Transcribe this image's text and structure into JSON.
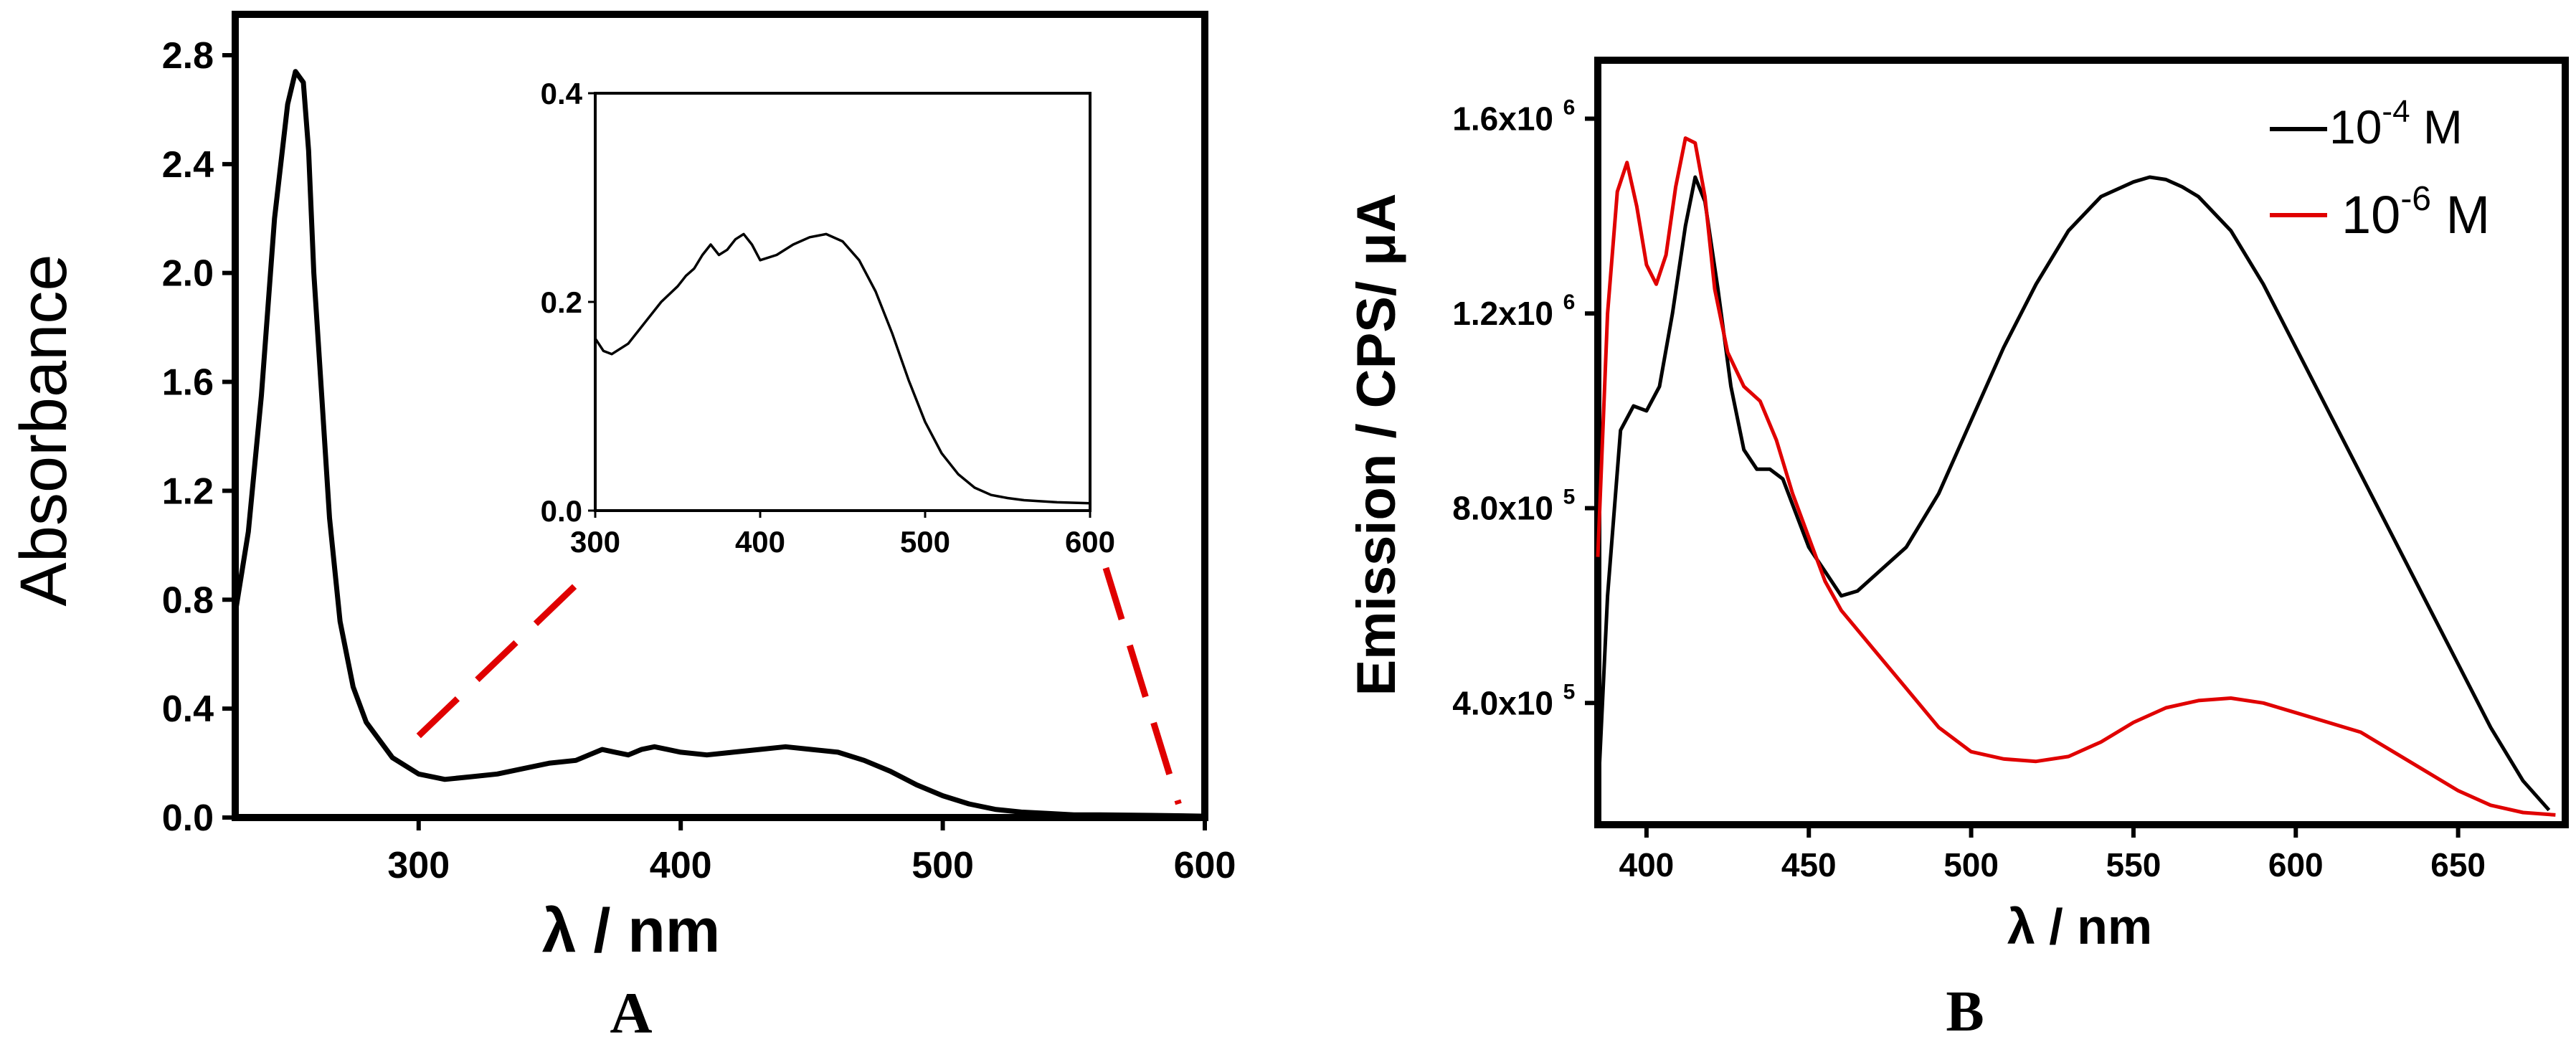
{
  "chart_data": [
    {
      "type": "line",
      "panel_label": "A",
      "xlabel": "λ / nm",
      "ylabel": "Absorbance",
      "xlim": [
        230,
        600
      ],
      "ylim": [
        0,
        2.95
      ],
      "xticks": [
        300,
        400,
        500,
        600
      ],
      "yticks": [
        0.0,
        0.4,
        0.8,
        1.2,
        1.6,
        2.0,
        2.4,
        2.8
      ],
      "xtick_labels": [
        "300",
        "400",
        "500",
        "600"
      ],
      "ytick_labels": [
        "0.0",
        "0.4",
        "0.8",
        "1.2",
        "1.6",
        "2.0",
        "2.4",
        "2.8"
      ],
      "series": [
        {
          "name": "absorbance",
          "color": "#000000",
          "x": [
            230,
            235,
            240,
            245,
            250,
            253,
            256,
            258,
            260,
            263,
            266,
            270,
            275,
            280,
            290,
            300,
            310,
            320,
            330,
            340,
            350,
            360,
            365,
            370,
            375,
            380,
            385,
            390,
            395,
            400,
            410,
            420,
            430,
            440,
            450,
            460,
            470,
            480,
            490,
            500,
            510,
            520,
            530,
            540,
            550,
            560,
            580,
            600
          ],
          "y": [
            0.75,
            1.05,
            1.55,
            2.2,
            2.62,
            2.74,
            2.7,
            2.45,
            2.0,
            1.55,
            1.1,
            0.72,
            0.48,
            0.35,
            0.22,
            0.16,
            0.14,
            0.15,
            0.16,
            0.18,
            0.2,
            0.21,
            0.23,
            0.25,
            0.24,
            0.23,
            0.25,
            0.26,
            0.25,
            0.24,
            0.23,
            0.24,
            0.25,
            0.26,
            0.25,
            0.24,
            0.21,
            0.17,
            0.12,
            0.08,
            0.05,
            0.03,
            0.02,
            0.015,
            0.01,
            0.01,
            0.008,
            0.005
          ]
        }
      ],
      "inset": {
        "type": "line",
        "xlim": [
          300,
          600
        ],
        "ylim": [
          0,
          0.4
        ],
        "xticks": [
          300,
          400,
          500,
          600
        ],
        "yticks": [
          0.0,
          0.2,
          0.4
        ],
        "xtick_labels": [
          "300",
          "400",
          "500",
          "600"
        ],
        "ytick_labels": [
          "0.0",
          "0.2",
          "0.4"
        ],
        "x": [
          300,
          305,
          310,
          320,
          330,
          340,
          350,
          355,
          360,
          365,
          370,
          375,
          380,
          385,
          390,
          395,
          400,
          410,
          420,
          430,
          440,
          450,
          460,
          470,
          480,
          490,
          500,
          510,
          520,
          530,
          540,
          550,
          560,
          580,
          600
        ],
        "y": [
          0.165,
          0.153,
          0.15,
          0.16,
          0.18,
          0.2,
          0.215,
          0.225,
          0.232,
          0.245,
          0.255,
          0.245,
          0.25,
          0.26,
          0.265,
          0.255,
          0.24,
          0.245,
          0.255,
          0.262,
          0.265,
          0.258,
          0.24,
          0.21,
          0.17,
          0.125,
          0.085,
          0.055,
          0.035,
          0.022,
          0.015,
          0.012,
          0.01,
          0.008,
          0.007
        ]
      },
      "zoom_guides": {
        "color": "#e00000",
        "main_x_range": [
          300,
          590
        ]
      }
    },
    {
      "type": "line",
      "panel_label": "B",
      "xlabel": "λ / nm",
      "ylabel": "Emission / CPS/ μA",
      "xlim": [
        385,
        683
      ],
      "ylim": [
        150000,
        1720000
      ],
      "xticks": [
        400,
        450,
        500,
        550,
        600,
        650
      ],
      "xtick_labels": [
        "400",
        "450",
        "500",
        "550",
        "600",
        "650"
      ],
      "yticks": [
        400000,
        800000,
        1200000,
        1600000
      ],
      "ytick_mantissas": [
        "4.0x10",
        "8.0x10",
        "1.2x10",
        "1.6x10"
      ],
      "ytick_exponents": [
        "5",
        "5",
        "6",
        "6"
      ],
      "legend": {
        "position": "top-right",
        "entries": [
          {
            "base": "10",
            "exponent": "-4",
            "unit": " M",
            "color": "#000000"
          },
          {
            "base": "10",
            "exponent": "-6",
            "unit": " M",
            "color": "#e00000"
          }
        ]
      },
      "series": [
        {
          "name": "10^-4 M",
          "color": "#000000",
          "x": [
            385,
            388,
            392,
            396,
            400,
            404,
            408,
            412,
            415,
            418,
            422,
            426,
            430,
            434,
            438,
            442,
            446,
            450,
            455,
            460,
            465,
            470,
            480,
            490,
            500,
            510,
            520,
            530,
            540,
            550,
            555,
            560,
            565,
            570,
            580,
            590,
            600,
            610,
            620,
            630,
            640,
            650,
            660,
            670,
            678
          ],
          "y": [
            200000,
            620000,
            960000,
            1010000,
            1000000,
            1050000,
            1200000,
            1380000,
            1480000,
            1430000,
            1250000,
            1050000,
            920000,
            880000,
            880000,
            860000,
            790000,
            720000,
            670000,
            620000,
            630000,
            660000,
            720000,
            830000,
            980000,
            1130000,
            1260000,
            1370000,
            1440000,
            1470000,
            1480000,
            1475000,
            1460000,
            1440000,
            1370000,
            1260000,
            1130000,
            1000000,
            870000,
            740000,
            610000,
            480000,
            350000,
            240000,
            180000
          ]
        },
        {
          "name": "10^-6 M",
          "color": "#e00000",
          "x": [
            385,
            388,
            391,
            394,
            397,
            400,
            403,
            406,
            409,
            412,
            415,
            418,
            421,
            425,
            430,
            435,
            440,
            445,
            450,
            455,
            460,
            470,
            480,
            490,
            500,
            510,
            520,
            530,
            540,
            550,
            560,
            570,
            580,
            590,
            600,
            610,
            620,
            630,
            640,
            650,
            660,
            670,
            680
          ],
          "y": [
            700000,
            1200000,
            1450000,
            1510000,
            1420000,
            1300000,
            1260000,
            1320000,
            1460000,
            1560000,
            1550000,
            1440000,
            1250000,
            1120000,
            1050000,
            1020000,
            940000,
            830000,
            740000,
            650000,
            590000,
            510000,
            430000,
            350000,
            300000,
            285000,
            280000,
            290000,
            320000,
            360000,
            390000,
            405000,
            410000,
            400000,
            380000,
            360000,
            340000,
            300000,
            260000,
            220000,
            190000,
            175000,
            170000
          ]
        }
      ]
    }
  ]
}
